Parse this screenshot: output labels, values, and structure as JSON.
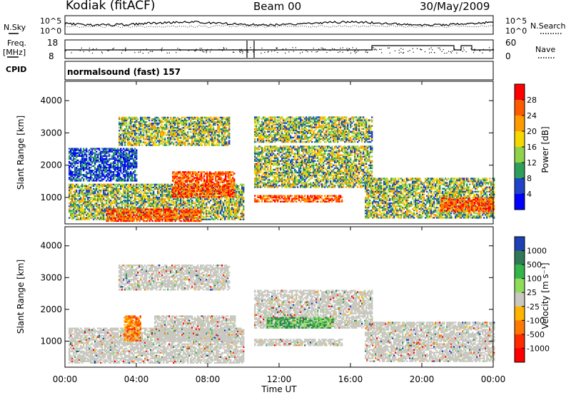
{
  "header": {
    "station": "Kodiak (fitACF)",
    "beam": "Beam 00",
    "date": "30/May/2009"
  },
  "labels": {
    "nsky": "N.Sky",
    "nsky_top": "10^5",
    "nsky_bottom": "10^0",
    "nsearch": "N.Search",
    "nsearch_top": "10^5",
    "nsearch_bottom": "10^0",
    "freq_line1": "Freq.",
    "freq_line2": "[MHz]",
    "freq_top": "18",
    "freq_bottom": "8",
    "nave": "Nave",
    "nave_top": "60",
    "nave_bottom": "0",
    "cpid": "CPID",
    "cpid_value": "normalsound (fast) 157"
  },
  "chart_data": [
    {
      "type": "heatmap",
      "name": "power",
      "ylabel": "Slant Range [km]",
      "yticks": [
        "4000",
        "3000",
        "2000",
        "1000"
      ],
      "ylim": [
        180,
        4600
      ],
      "colorbar": {
        "label": "Power [dB]",
        "ticks": [
          "28",
          "24",
          "20",
          "16",
          "12",
          "8",
          "4"
        ],
        "colors": [
          "#ff0000",
          "#ff5a00",
          "#ff9a00",
          "#f5d800",
          "#8fd34a",
          "#2e9e5a",
          "#1f44c8",
          "#0000ff"
        ]
      },
      "regions": [
        {
          "t0": 0.2,
          "t1": 10.0,
          "r0": 300,
          "r1": 1400,
          "level": "mid"
        },
        {
          "t0": 2.3,
          "t1": 7.6,
          "r0": 250,
          "r1": 650,
          "level": "high"
        },
        {
          "t0": 6.0,
          "t1": 9.5,
          "r0": 1000,
          "r1": 1800,
          "level": "high"
        },
        {
          "t0": 0.2,
          "t1": 4.0,
          "r0": 1500,
          "r1": 2500,
          "level": "low"
        },
        {
          "t0": 3.0,
          "t1": 9.2,
          "r0": 2600,
          "r1": 3500,
          "level": "mid"
        },
        {
          "t0": 10.6,
          "t1": 17.2,
          "r0": 1300,
          "r1": 2600,
          "level": "mid"
        },
        {
          "t0": 10.6,
          "t1": 17.2,
          "r0": 2700,
          "r1": 3500,
          "level": "mid"
        },
        {
          "t0": 10.6,
          "t1": 15.5,
          "r0": 850,
          "r1": 1050,
          "level": "high"
        },
        {
          "t0": 16.8,
          "t1": 24.0,
          "r0": 350,
          "r1": 1600,
          "level": "mid"
        },
        {
          "t0": 21.0,
          "t1": 24.0,
          "r0": 550,
          "r1": 1000,
          "level": "high"
        }
      ]
    },
    {
      "type": "heatmap",
      "name": "velocity",
      "ylabel": "Slant Range [km]",
      "xlabel": "Time UT",
      "xticks": [
        "00:00",
        "04:00",
        "08:00",
        "12:00",
        "16:00",
        "20:00",
        "00:00"
      ],
      "yticks": [
        "4000",
        "3000",
        "2000",
        "1000"
      ],
      "ylim": [
        180,
        4600
      ],
      "colorbar": {
        "label": "Velocity [m s⁻¹]",
        "ticks": [
          "1000",
          "500",
          "100",
          "25",
          "-25",
          "-100",
          "-500",
          "-1000"
        ],
        "colors": [
          "#1f3fb4",
          "#2f7a55",
          "#33b54a",
          "#8fdc5a",
          "#c8c8c0",
          "#ffb400",
          "#ff7800",
          "#ff2a00",
          "#ff0000"
        ]
      },
      "regions": [
        {
          "t0": 0.2,
          "t1": 10.0,
          "r0": 300,
          "r1": 1400,
          "level": "ground"
        },
        {
          "t0": 5.0,
          "t1": 9.5,
          "r0": 1000,
          "r1": 1800,
          "level": "ground"
        },
        {
          "t0": 3.0,
          "t1": 9.2,
          "r0": 2600,
          "r1": 3400,
          "level": "ground"
        },
        {
          "t0": 10.6,
          "t1": 17.2,
          "r0": 1400,
          "r1": 2600,
          "level": "ground"
        },
        {
          "t0": 11.3,
          "t1": 15.0,
          "r0": 1400,
          "r1": 1750,
          "level": "pos"
        },
        {
          "t0": 10.6,
          "t1": 15.5,
          "r0": 850,
          "r1": 1050,
          "level": "ground"
        },
        {
          "t0": 16.8,
          "t1": 24.0,
          "r0": 350,
          "r1": 1600,
          "level": "ground"
        },
        {
          "t0": 3.3,
          "t1": 4.2,
          "r0": 1000,
          "r1": 1800,
          "level": "neg"
        }
      ]
    }
  ]
}
